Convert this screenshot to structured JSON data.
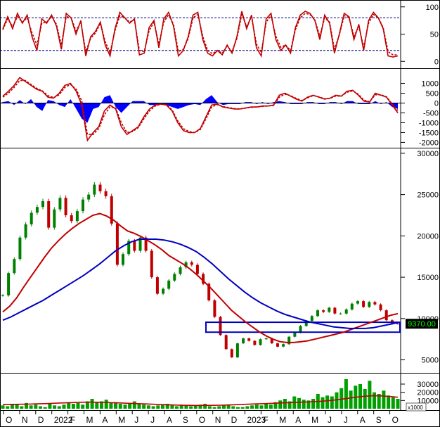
{
  "chart_data": {
    "type": "line",
    "x_ticks": [
      "O",
      "N",
      "D",
      "2022",
      "F",
      "M",
      "A",
      "M",
      "J",
      "J",
      "A",
      "S",
      "O",
      "N",
      "D",
      "2023",
      "F",
      "M",
      "A",
      "M",
      "J",
      "J",
      "A",
      "S",
      "O"
    ],
    "panels": [
      {
        "id": "stochastic",
        "y_ticks": [
          "100",
          "50",
          "0"
        ],
        "ylim": [
          -10,
          110
        ],
        "reference_levels": [
          80,
          20
        ],
        "series": [
          {
            "color": "#c00000",
            "values": [
              60,
              82,
              60,
              88,
              70,
              85,
              45,
              20,
              78,
              70,
              85,
              65,
              22,
              88,
              80,
              50,
              75,
              10,
              45,
              55,
              72,
              30,
              10,
              60,
              90,
              80,
              70,
              78,
              12,
              15,
              62,
              75,
              25,
              78,
              90,
              65,
              10,
              20,
              45,
              85,
              90,
              40,
              15,
              10,
              20,
              12,
              30,
              15,
              45,
              92,
              60,
              85,
              25,
              10,
              78,
              88,
              40,
              20,
              30,
              15,
              62,
              85,
              92,
              88,
              75,
              40,
              85,
              70,
              15,
              50,
              88,
              82,
              40,
              68,
              20,
              75,
              90,
              80,
              60,
              10,
              8,
              10
            ]
          },
          {
            "color": "#c00000",
            "values": [
              58,
              78,
              64,
              82,
              72,
              80,
              52,
              30,
              70,
              72,
              82,
              68,
              30,
              82,
              80,
              56,
              72,
              18,
              42,
              52,
              70,
              36,
              16,
              56,
              84,
              80,
              72,
              76,
              20,
              18,
              56,
              72,
              32,
              72,
              86,
              68,
              18,
              22,
              42,
              80,
              86,
              46,
              20,
              14,
              20,
              15,
              28,
              18,
              42,
              86,
              64,
              82,
              32,
              16,
              72,
              84,
              46,
              26,
              30,
              20,
              58,
              80,
              88,
              86,
              76,
              46,
              80,
              72,
              22,
              48,
              84,
              80,
              46,
              64,
              26,
              70,
              86,
              80,
              62,
              18,
              12,
              12
            ]
          }
        ]
      },
      {
        "id": "macd",
        "y_ticks": [
          "1000",
          "500",
          "0",
          "-500",
          "-1000",
          "-1500",
          "-2000"
        ],
        "ylim": [
          -2200,
          1700
        ],
        "series": [
          {
            "color": "#c00000",
            "values": [
              350,
              600,
              900,
              1300,
              1100,
              900,
              700,
              600,
              300,
              250,
              500,
              900,
              1000,
              600,
              -100,
              -1900,
              -1500,
              -1200,
              -400,
              -100,
              -300,
              -1200,
              -1600,
              -1400,
              -1200,
              -700,
              -300,
              -100,
              -50,
              -100,
              -400,
              -1000,
              -1400,
              -1500,
              -1500,
              -1300,
              -700,
              -100,
              -50,
              -200,
              -250,
              -300,
              -300,
              -250,
              -200,
              -200,
              -150,
              -150,
              -100,
              400,
              500,
              350,
              200,
              100,
              300,
              400,
              300,
              200,
              250,
              400,
              350,
              600,
              650,
              400,
              100,
              50,
              500,
              400,
              300,
              -100,
              -500
            ]
          },
          {
            "color": "#c00000",
            "values": [
              300,
              500,
              800,
              1150,
              1150,
              950,
              750,
              620,
              380,
              280,
              420,
              800,
              950,
              700,
              100,
              -1600,
              -1600,
              -1300,
              -600,
              -200,
              -250,
              -1000,
              -1500,
              -1450,
              -1250,
              -800,
              -400,
              -150,
              -60,
              -80,
              -350,
              -900,
              -1300,
              -1450,
              -1500,
              -1350,
              -800,
              -200,
              -80,
              -170,
              -230,
              -280,
              -300,
              -260,
              -220,
              -200,
              -170,
              -150,
              -120,
              300,
              450,
              380,
              240,
              130,
              260,
              380,
              320,
              220,
              240,
              360,
              350,
              550,
              620,
              450,
              150,
              70,
              420,
              420,
              320,
              -50,
              -380
            ]
          }
        ],
        "histogram": [
          50,
          100,
          -100,
          150,
          -50,
          200,
          -200,
          -400,
          150,
          100,
          -100,
          -200,
          200,
          -300,
          -800,
          -1000,
          -300,
          -200,
          300,
          400,
          -200,
          -500,
          -200,
          100,
          100,
          100,
          -100,
          -100,
          -50,
          -100,
          -200,
          -300,
          -200,
          -100,
          -50,
          -100,
          200,
          400,
          50,
          -100,
          -50,
          -50,
          -50,
          50,
          50,
          -50,
          50,
          -50,
          50,
          100,
          50,
          -50,
          -50,
          -50,
          50,
          50,
          -50,
          -50,
          50,
          50,
          -50,
          100,
          100,
          -50,
          -50,
          -50,
          100,
          -50,
          50,
          -200,
          -300
        ]
      },
      {
        "id": "price",
        "y_ticks": [
          "30000",
          "25000",
          "20000",
          "15000",
          "10000",
          "5000"
        ],
        "ylim": [
          3600,
          30500
        ],
        "last_price_label": "9370.00",
        "close": [
          12800,
          15500,
          17200,
          19800,
          21400,
          22800,
          23500,
          24200,
          21000,
          23200,
          24600,
          22500,
          21800,
          23000,
          24400,
          25000,
          26200,
          25400,
          24800,
          21500,
          16500,
          17800,
          19400,
          18200,
          19800,
          18200,
          15000,
          13000,
          13600,
          14600,
          15400,
          16200,
          16800,
          16500,
          15400,
          14200,
          12200,
          10200,
          8000,
          6300,
          5300,
          7000,
          7600,
          7300,
          6800,
          7500,
          7600,
          7000,
          6600,
          6900,
          7800,
          8300,
          9100,
          9700,
          10300,
          11000,
          10800,
          11300,
          10600,
          10600,
          11100,
          11800,
          12100,
          11400,
          12000,
          11700,
          11000,
          9800,
          9400,
          9370
        ],
        "series": [
          {
            "color": "#c00000",
            "values": [
              10800,
              11500,
              12500,
              13800,
              15000,
              16200,
              17400,
              18500,
              19400,
              20200,
              20900,
              21500,
              22000,
              22500,
              22700,
              22400,
              21900,
              21200,
              20600,
              20300,
              19900,
              19400,
              18900,
              18300,
              17600,
              17100,
              16600,
              16000,
              15300,
              14500,
              13700,
              12800,
              11900,
              11000,
              10300,
              9600,
              9000,
              8400,
              7900,
              7500,
              7200,
              7100,
              7100,
              7200,
              7300,
              7500,
              7700,
              7900,
              8100,
              8300,
              8600,
              8900,
              9200,
              9500,
              9800,
              10100,
              10400,
              10600
            ]
          },
          {
            "color": "#0000c0",
            "values": [
              9800,
              10200,
              10700,
              11200,
              11700,
              12200,
              12800,
              13400,
              14000,
              14600,
              15200,
              15900,
              16600,
              17400,
              18200,
              18800,
              19300,
              19600,
              19600,
              19600,
              19500,
              19300,
              19000,
              18600,
              18100,
              17400,
              16600,
              15700,
              14800,
              14000,
              13200,
              12500,
              11900,
              11400,
              10900,
              10500,
              10200,
              9900,
              9600,
              9400,
              9200,
              9000,
              8900,
              8800,
              8800,
              8800,
              8900,
              9100,
              9300,
              9500
            ]
          }
        ],
        "support_box": {
          "y_from": 8350,
          "y_to": 9550
        }
      },
      {
        "id": "volume",
        "y_ticks": [
          "30000",
          "20000",
          "10000"
        ],
        "ylim": [
          0,
          42000
        ],
        "unit_label": "x1000",
        "bars": [
          4000,
          3000,
          6000,
          5000,
          3000,
          7000,
          4000,
          5000,
          3000,
          2000,
          6000,
          4000,
          3000,
          5000,
          8000,
          6000,
          7000,
          5000,
          9000,
          12000,
          8000,
          9000,
          11000,
          7000,
          8000,
          6000,
          5000,
          7000,
          9000,
          6000,
          5000,
          4000,
          3000,
          4000,
          5000,
          6000,
          4000,
          3000,
          5000,
          4000,
          3000,
          4000,
          5000,
          6000,
          3000,
          2000,
          3000,
          4000,
          5000,
          3000,
          2000,
          2000,
          3000,
          4000,
          5000,
          4000,
          6000,
          5000,
          8000,
          10000,
          12000,
          9000,
          15000,
          13000,
          11000,
          10000,
          12000,
          18000,
          14000,
          16000,
          15000,
          20000,
          25000,
          36000,
          22000,
          28000,
          30000,
          24000,
          34000,
          20000,
          18000,
          22000,
          16000,
          14000,
          12000
        ],
        "series": [
          {
            "color": "#c00000",
            "values": [
              5000,
              5200,
              5400,
              5600,
              5900,
              6200,
              6600,
              7000,
              7400,
              7800,
              8000,
              7900,
              7700,
              7400,
              7000,
              6600,
              6200,
              5800,
              5400,
              5000,
              4600,
              4300,
              4100,
              4000,
              4000,
              4100,
              4300,
              4600,
              5000,
              5400,
              5800,
              6200,
              6600,
              7000,
              7400,
              7800,
              8100,
              8600,
              9200,
              10000,
              11200,
              12600,
              14000,
              15200,
              15800,
              15600,
              15000,
              14000
            ]
          }
        ]
      }
    ]
  }
}
